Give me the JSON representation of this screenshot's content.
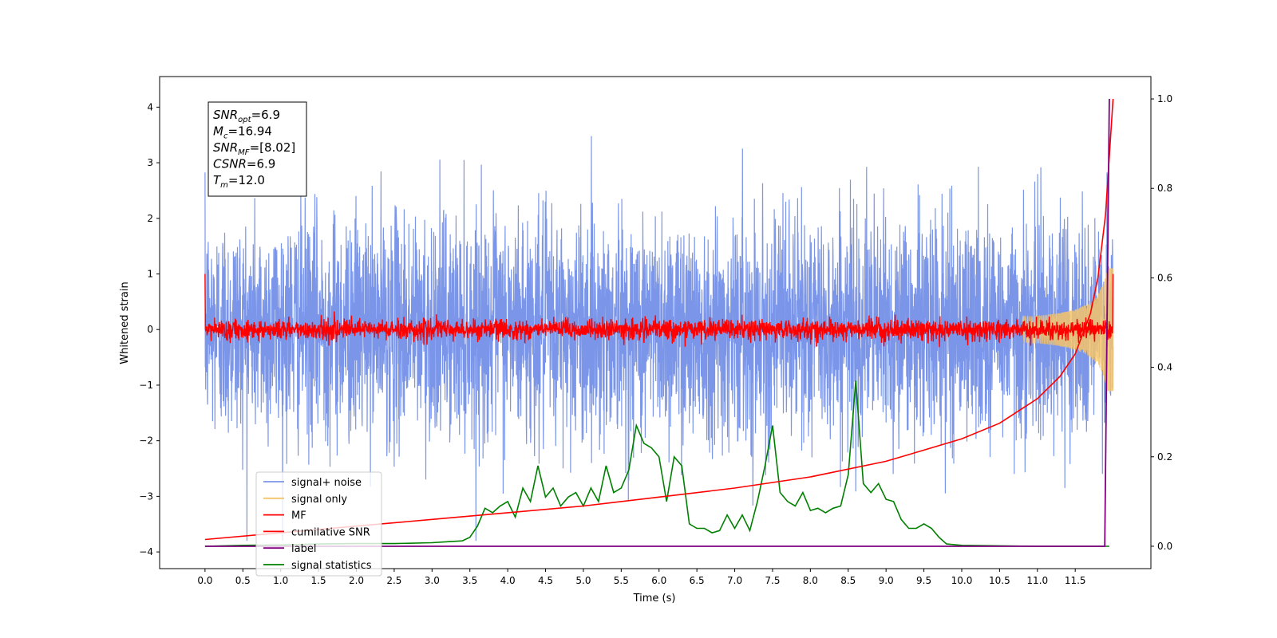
{
  "chart_data": {
    "type": "line",
    "xlabel": "Time (s)",
    "ylabel": "Whitened strain",
    "xlim": [
      -0.6,
      12.5
    ],
    "ylim": [
      -4.3,
      4.55
    ],
    "y2lim": [
      -0.05,
      1.05
    ],
    "x_ticks": [
      "0.0",
      "0.5",
      "1.0",
      "1.5",
      "2.0",
      "2.5",
      "3.0",
      "3.5",
      "4.0",
      "4.5",
      "5.0",
      "5.5",
      "6.0",
      "6.5",
      "7.0",
      "7.5",
      "8.0",
      "8.5",
      "9.0",
      "9.5",
      "10.0",
      "10.5",
      "11.0",
      "11.5"
    ],
    "y_ticks": [
      "−4",
      "−3",
      "−2",
      "−1",
      "0",
      "1",
      "2",
      "3",
      "4"
    ],
    "y2_ticks": [
      "0.0",
      "0.2",
      "0.4",
      "0.6",
      "0.8",
      "1.0"
    ],
    "legend_placement": "lower-left",
    "grid": false,
    "annotation": {
      "lines": [
        {
          "main": "SNR",
          "sub": "opt",
          "value": "=6.9"
        },
        {
          "main": "M",
          "sub": "c",
          "value": "=16.94"
        },
        {
          "main": "SNR",
          "sub": "MF",
          "value": "=[8.02]"
        },
        {
          "main": "CSNR",
          "sub": "",
          "value": "=6.9"
        },
        {
          "main": "T",
          "sub": "m",
          "value": "=12.0"
        }
      ]
    },
    "series": [
      {
        "name": "signal+ noise",
        "color": "#7b96e8",
        "axis": "left",
        "description": "whitened noise amplitude ~±2.5 over 0–12 s"
      },
      {
        "name": "signal only",
        "color": "#f5c46a",
        "axis": "left",
        "description": "chirp growing near 11.3–12 s"
      },
      {
        "name": "MF",
        "color": "#ff0000",
        "axis": "left",
        "description": "matched filter output ~±0.2 around 0"
      },
      {
        "name": "cumilative SNR",
        "color": "#ff0000",
        "axis": "right",
        "x": [
          0.0,
          1.0,
          2.0,
          3.0,
          4.0,
          5.0,
          6.0,
          7.0,
          8.0,
          9.0,
          9.5,
          10.0,
          10.5,
          11.0,
          11.3,
          11.5,
          11.7,
          11.8,
          11.9,
          12.0
        ],
        "values": [
          0.015,
          0.03,
          0.045,
          0.06,
          0.075,
          0.09,
          0.11,
          0.13,
          0.155,
          0.19,
          0.215,
          0.24,
          0.275,
          0.33,
          0.38,
          0.43,
          0.52,
          0.6,
          0.74,
          1.0
        ]
      },
      {
        "name": "label",
        "color": "#800080",
        "axis": "right",
        "x": [
          0.0,
          11.89,
          11.95
        ],
        "values": [
          0.0,
          0.0,
          1.0
        ]
      },
      {
        "name": "signal statistics",
        "color": "#008000",
        "axis": "right",
        "x": [
          0.0,
          0.5,
          1.0,
          1.5,
          2.0,
          2.5,
          3.0,
          3.2,
          3.4,
          3.5,
          3.6,
          3.7,
          3.8,
          3.9,
          4.0,
          4.1,
          4.2,
          4.3,
          4.4,
          4.5,
          4.6,
          4.7,
          4.8,
          4.9,
          5.0,
          5.1,
          5.2,
          5.3,
          5.4,
          5.5,
          5.6,
          5.7,
          5.8,
          5.9,
          6.0,
          6.1,
          6.2,
          6.3,
          6.4,
          6.5,
          6.6,
          6.7,
          6.8,
          6.9,
          7.0,
          7.1,
          7.2,
          7.3,
          7.4,
          7.5,
          7.6,
          7.7,
          7.8,
          7.9,
          8.0,
          8.1,
          8.2,
          8.3,
          8.4,
          8.5,
          8.6,
          8.7,
          8.8,
          8.9,
          9.0,
          9.1,
          9.2,
          9.3,
          9.4,
          9.5,
          9.6,
          9.7,
          9.8,
          10.0,
          10.5,
          11.0,
          11.5,
          11.95
        ],
        "values": [
          0.0,
          0.002,
          0.003,
          0.005,
          0.006,
          0.006,
          0.008,
          0.01,
          0.012,
          0.02,
          0.045,
          0.085,
          0.075,
          0.09,
          0.1,
          0.065,
          0.13,
          0.1,
          0.18,
          0.11,
          0.13,
          0.09,
          0.11,
          0.12,
          0.09,
          0.13,
          0.1,
          0.18,
          0.12,
          0.13,
          0.17,
          0.27,
          0.23,
          0.22,
          0.2,
          0.1,
          0.2,
          0.18,
          0.05,
          0.04,
          0.04,
          0.03,
          0.035,
          0.07,
          0.04,
          0.07,
          0.035,
          0.1,
          0.18,
          0.27,
          0.12,
          0.1,
          0.09,
          0.12,
          0.08,
          0.085,
          0.075,
          0.085,
          0.09,
          0.16,
          0.37,
          0.14,
          0.12,
          0.14,
          0.105,
          0.1,
          0.06,
          0.04,
          0.04,
          0.05,
          0.04,
          0.02,
          0.005,
          0.002,
          0.001,
          0.0,
          0.0,
          0.0
        ]
      }
    ]
  }
}
